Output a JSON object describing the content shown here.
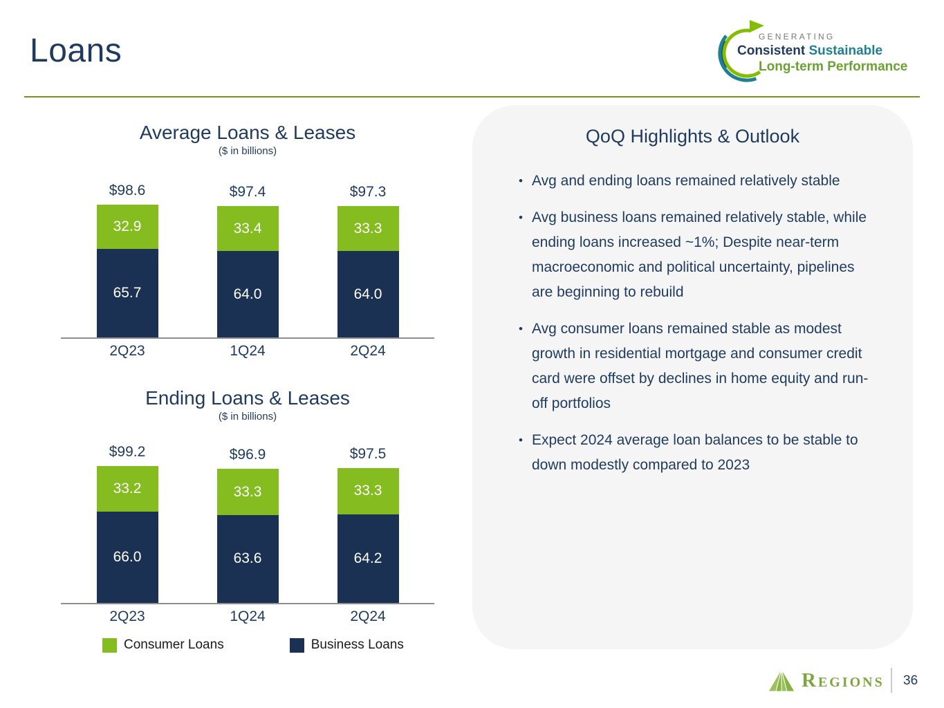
{
  "header": {
    "title": "Loans"
  },
  "logo": {
    "generating": "GENERATING",
    "consistent": "Consistent",
    "sustainable": " Sustainable",
    "longterm": "Long-term Performance",
    "green": "#84BD00",
    "teal": "#1F7F93",
    "navy": "#1F3A5F"
  },
  "chart_data": [
    {
      "type": "bar",
      "stacked": true,
      "title": "Average Loans & Leases",
      "subtitle": "($ in billions)",
      "categories": [
        "2Q23",
        "1Q24",
        "2Q24"
      ],
      "series": [
        {
          "name": "Business Loans",
          "color": "#1A3153",
          "values": [
            65.7,
            64.0,
            64.0
          ]
        },
        {
          "name": "Consumer Loans",
          "color": "#85BC1F",
          "values": [
            32.9,
            33.4,
            33.3
          ]
        }
      ],
      "totals": [
        "$98.6",
        "$97.4",
        "$97.3"
      ],
      "ylabel": "",
      "xlabel": "",
      "grid": false,
      "legend_position": "below-second-chart"
    },
    {
      "type": "bar",
      "stacked": true,
      "title": "Ending Loans & Leases",
      "subtitle": "($ in billions)",
      "categories": [
        "2Q23",
        "1Q24",
        "2Q24"
      ],
      "series": [
        {
          "name": "Business Loans",
          "color": "#1A3153",
          "values": [
            66.0,
            63.6,
            64.2
          ]
        },
        {
          "name": "Consumer Loans",
          "color": "#85BC1F",
          "values": [
            33.2,
            33.3,
            33.3
          ]
        }
      ],
      "totals": [
        "$99.2",
        "$96.9",
        "$97.5"
      ],
      "ylabel": "",
      "xlabel": "",
      "grid": false,
      "legend_position": "below"
    }
  ],
  "legend": [
    {
      "label": "Consumer Loans",
      "color": "#85BC1F"
    },
    {
      "label": "Business Loans",
      "color": "#1A3153"
    }
  ],
  "highlights": {
    "title": "QoQ Highlights & Outlook",
    "bullets": [
      "Avg and ending loans remained relatively stable",
      "Avg business loans remained relatively stable, while ending loans increased ~1%; Despite near-term macroeconomic and political uncertainty, pipelines are beginning to rebuild",
      "Avg consumer loans remained stable as modest growth in residential mortgage and consumer credit card were offset by declines in home equity and run-off portfolios",
      "Expect 2024 average loan balances to be stable to down modestly compared to 2023"
    ]
  },
  "footer": {
    "brand": "Regions",
    "page": "36"
  }
}
